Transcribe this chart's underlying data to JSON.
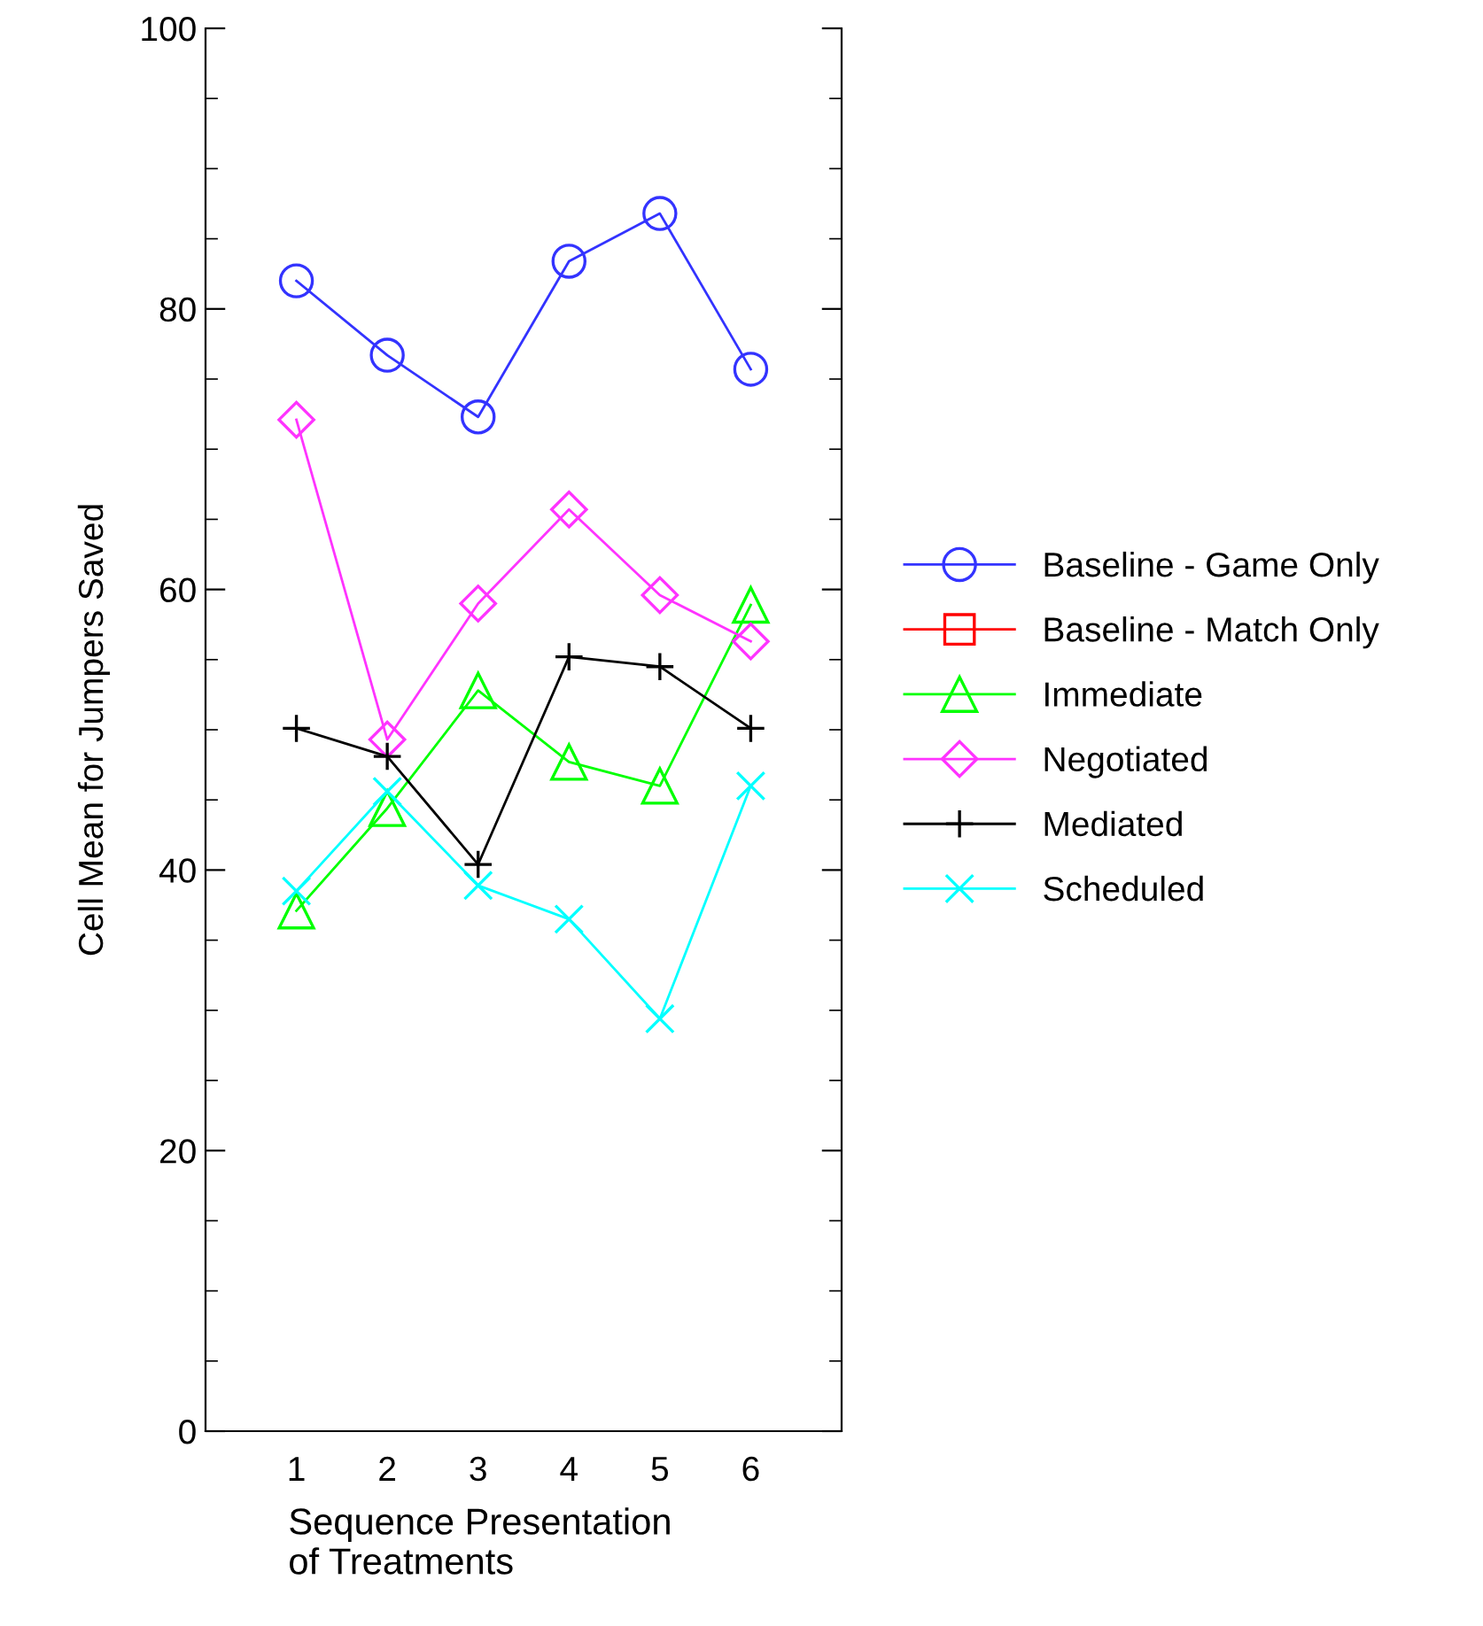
{
  "chart_data": {
    "type": "line",
    "xlabel": "Sequence Presentation\nof Treatments",
    "ylabel": "Cell Mean for Jumpers Saved",
    "x": [
      1,
      2,
      3,
      4,
      5,
      6
    ],
    "xlim": [
      0,
      7
    ],
    "xticks": [
      1,
      2,
      3,
      4,
      5,
      6
    ],
    "ylim": [
      0,
      100
    ],
    "yticks": [
      0,
      20,
      40,
      60,
      80,
      100
    ],
    "grid": false,
    "legend": "right",
    "series": [
      {
        "name": "Baseline - Game Only",
        "color": "#3333ff",
        "marker": "circle",
        "values": [
          82.0,
          76.7,
          72.3,
          83.4,
          86.8,
          75.7
        ]
      },
      {
        "name": "Baseline - Match Only",
        "color": "#ff0000",
        "marker": "square",
        "values": [
          null,
          null,
          null,
          null,
          null,
          null
        ]
      },
      {
        "name": "Immediate",
        "color": "#00ff00",
        "marker": "triangle",
        "values": [
          37.1,
          44.4,
          52.8,
          47.7,
          46.0,
          58.9
        ]
      },
      {
        "name": "Negotiated",
        "color": "#ff33ff",
        "marker": "diamond",
        "values": [
          72.1,
          49.3,
          59.0,
          65.7,
          59.6,
          56.3
        ]
      },
      {
        "name": "Mediated",
        "color": "#000000",
        "marker": "plus",
        "values": [
          50.1,
          48.1,
          40.4,
          55.2,
          54.5,
          50.1
        ]
      },
      {
        "name": "Scheduled",
        "color": "#00ffff",
        "marker": "cross",
        "values": [
          38.5,
          45.6,
          38.9,
          36.5,
          29.4,
          46.0
        ]
      }
    ]
  }
}
